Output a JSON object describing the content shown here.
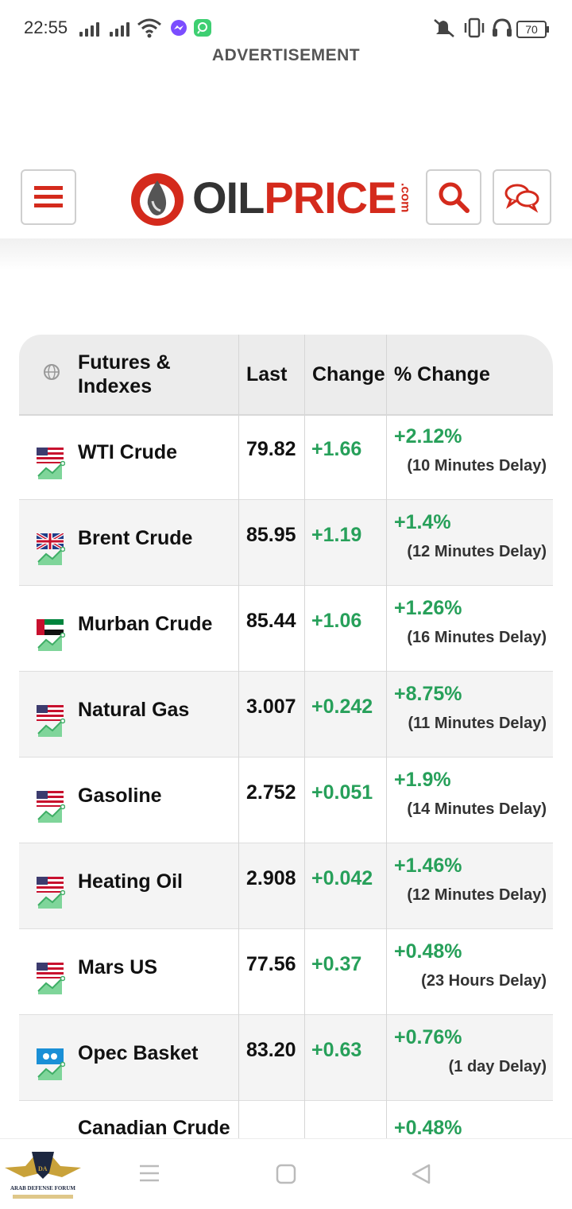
{
  "status_bar": {
    "time": "22:55",
    "battery": "70"
  },
  "ad_label": "ADVERTISEMENT",
  "header": {
    "logo_main_1": "OIL",
    "logo_main_2": "PRICE",
    "logo_suffix": ".com",
    "menu_icon": "hamburger-icon",
    "search_icon": "search-icon",
    "chat_icon": "chat-icon"
  },
  "table": {
    "headers": {
      "name": "Futures & Indexes",
      "last": "Last",
      "change": "Change",
      "pct_change": "% Change"
    },
    "rows": [
      {
        "name": "WTI Crude",
        "flag": "us",
        "last": "79.82",
        "change": "+1.66",
        "pct": "+2.12%",
        "delay": "(10 Minutes Delay)"
      },
      {
        "name": "Brent Crude",
        "flag": "uk",
        "last": "85.95",
        "change": "+1.19",
        "pct": "+1.4%",
        "delay": "(12 Minutes Delay)"
      },
      {
        "name": "Murban Crude",
        "flag": "uae",
        "last": "85.44",
        "change": "+1.06",
        "pct": "+1.26%",
        "delay": "(16 Minutes Delay)"
      },
      {
        "name": "Natural Gas",
        "flag": "us",
        "last": "3.007",
        "change": "+0.242",
        "pct": "+8.75%",
        "delay": "(11 Minutes Delay)"
      },
      {
        "name": "Gasoline",
        "flag": "us",
        "last": "2.752",
        "change": "+0.051",
        "pct": "+1.9%",
        "delay": "(14 Minutes Delay)"
      },
      {
        "name": "Heating Oil",
        "flag": "us",
        "last": "2.908",
        "change": "+0.042",
        "pct": "+1.46%",
        "delay": "(12 Minutes Delay)"
      },
      {
        "name": "Mars US",
        "flag": "us",
        "last": "77.56",
        "change": "+0.37",
        "pct": "+0.48%",
        "delay": "(23 Hours Delay)"
      },
      {
        "name": "Opec Basket",
        "flag": "opec",
        "last": "83.20",
        "change": "+0.63",
        "pct": "+0.76%",
        "delay": "(1 day Delay)"
      },
      {
        "name": "Canadian Crude",
        "flag": "ca",
        "last": "",
        "change": "",
        "pct": "+0.48%",
        "delay": ""
      }
    ]
  },
  "colors": {
    "brand_red": "#d42a1c",
    "positive_green": "#27a05a"
  },
  "watermark": {
    "text": "ARAB DEFENSE FORUM"
  }
}
